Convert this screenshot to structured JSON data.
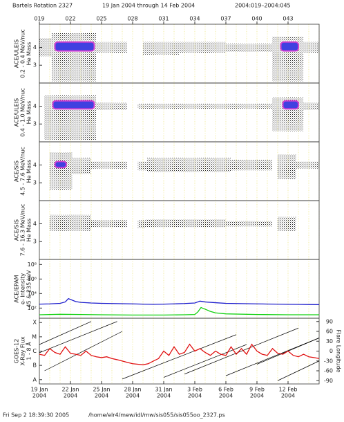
{
  "header": {
    "rotation": "Bartels Rotation 2327",
    "range": "19 Jan 2004 through 14 Feb 2004",
    "doy_range": "2004:019–2004:045"
  },
  "footer": {
    "timestamp": "Fri Sep  2 18:39:30 2005",
    "file": "/home/elr4/mew/idl/mw/sis055/sis055oo_2327.ps"
  },
  "chart_data": [
    {
      "type": "scatter",
      "ylabel": [
        "ACE/ULEIS",
        "0.2 - 0.4 MeV/nuc",
        "He Mass"
      ],
      "xlim": [
        19,
        46
      ],
      "ylim": [
        2,
        5.3
      ],
      "yticks": [
        3,
        4
      ],
      "x2ticks": [
        {
          "value": 19,
          "label": "019"
        },
        {
          "value": 22,
          "label": "022"
        },
        {
          "value": 25,
          "label": "025"
        },
        {
          "value": 28,
          "label": "028"
        },
        {
          "value": 31,
          "label": "031"
        },
        {
          "value": 34,
          "label": "034"
        },
        {
          "value": 37,
          "label": "037"
        },
        {
          "value": 40,
          "label": "040"
        },
        {
          "value": 43,
          "label": "043"
        }
      ],
      "minor_xticks": [
        19,
        20,
        21,
        22,
        23,
        24,
        25,
        26,
        27,
        28,
        29,
        30,
        31,
        32,
        33,
        34,
        35,
        36,
        37,
        38,
        39,
        40,
        41,
        42,
        43,
        44,
        45,
        46
      ],
      "grid_color": "#e8e060",
      "core_color": "#4040e0",
      "core_edge": "#d040d0",
      "clusters": [
        {
          "x": [
            19,
            20.2
          ],
          "y": [
            3.5,
            4.5
          ]
        },
        {
          "x": [
            20.2,
            24.5
          ],
          "y": [
            2.1,
            4.8
          ]
        },
        {
          "x": [
            24.5,
            27.5
          ],
          "y": [
            3.7,
            4.3
          ]
        },
        {
          "x": [
            29,
            32.5
          ],
          "y": [
            3.6,
            4.3
          ]
        },
        {
          "x": [
            32.5,
            37
          ],
          "y": [
            3.7,
            4.3
          ]
        },
        {
          "x": [
            37,
            41.5
          ],
          "y": [
            3.75,
            4.2
          ]
        },
        {
          "x": [
            41.5,
            44.5
          ],
          "y": [
            2.1,
            4.6
          ]
        },
        {
          "x": [
            44.5,
            46
          ],
          "y": [
            3.7,
            4.3
          ]
        }
      ],
      "cores": [
        {
          "x": [
            20.5,
            24.3
          ],
          "y": [
            3.8,
            4.3
          ]
        },
        {
          "x": [
            42.3,
            44
          ],
          "y": [
            3.8,
            4.3
          ]
        }
      ]
    },
    {
      "type": "scatter",
      "ylabel": [
        "ACE/ULEIS",
        "0.4 - 1.0 MeV/nuc",
        "He Mass"
      ],
      "xlim": [
        19,
        46
      ],
      "ylim": [
        2,
        5.3
      ],
      "yticks": [
        3,
        4
      ],
      "core_color": "#4040e0",
      "core_edge": "#d040d0",
      "clusters": [
        {
          "x": [
            19.5,
            24.5
          ],
          "y": [
            2.1,
            4.6
          ]
        },
        {
          "x": [
            24.5,
            27.5
          ],
          "y": [
            3.8,
            4.2
          ]
        },
        {
          "x": [
            28.5,
            41.5
          ],
          "y": [
            3.85,
            4.15
          ]
        },
        {
          "x": [
            41.5,
            44.5
          ],
          "y": [
            2.6,
            4.5
          ]
        },
        {
          "x": [
            44.5,
            46
          ],
          "y": [
            3.8,
            4.2
          ]
        }
      ],
      "cores": [
        {
          "x": [
            20.3,
            24.3
          ],
          "y": [
            3.85,
            4.3
          ]
        },
        {
          "x": [
            42.5,
            44
          ],
          "y": [
            3.85,
            4.3
          ]
        }
      ]
    },
    {
      "type": "scatter",
      "ylabel": [
        "ACE/SIS",
        "4.5 - 7.6 MeV/nuc",
        "He Mass"
      ],
      "xlim": [
        19,
        46
      ],
      "ylim": [
        2,
        5.3
      ],
      "yticks": [
        3,
        4
      ],
      "core_color": "#4040e0",
      "core_edge": "#d040d0",
      "clusters": [
        {
          "x": [
            20,
            22.2
          ],
          "y": [
            2.6,
            4.7
          ]
        },
        {
          "x": [
            22.2,
            24
          ],
          "y": [
            3.5,
            4.4
          ]
        },
        {
          "x": [
            24,
            27.5
          ],
          "y": [
            3.8,
            4.2
          ]
        },
        {
          "x": [
            28.5,
            29.4
          ],
          "y": [
            3.7,
            4.2
          ]
        },
        {
          "x": [
            29.4,
            37.5
          ],
          "y": [
            3.6,
            4.4
          ]
        },
        {
          "x": [
            37.5,
            41.5
          ],
          "y": [
            3.7,
            4.3
          ]
        },
        {
          "x": [
            42,
            43.8
          ],
          "y": [
            3.2,
            4.6
          ]
        },
        {
          "x": [
            43.8,
            46
          ],
          "y": [
            3.8,
            4.2
          ]
        }
      ],
      "cores": [
        {
          "x": [
            20.5,
            21.6
          ],
          "y": [
            3.85,
            4.2
          ]
        }
      ]
    },
    {
      "type": "scatter",
      "ylabel": [
        "ACE/SIS",
        "7.6 - 16.3 MeV/nuc",
        "He Mass"
      ],
      "xlim": [
        19,
        46
      ],
      "ylim": [
        2,
        5.3
      ],
      "yticks": [
        3,
        4
      ],
      "clusters": [
        {
          "x": [
            20,
            24
          ],
          "y": [
            3.6,
            4.5
          ]
        },
        {
          "x": [
            24,
            27.5
          ],
          "y": [
            3.8,
            4.2
          ]
        },
        {
          "x": [
            28.5,
            29.3
          ],
          "y": [
            3.75,
            4.2
          ]
        },
        {
          "x": [
            29.3,
            37
          ],
          "y": [
            3.8,
            4.25
          ]
        },
        {
          "x": [
            37,
            41.5
          ],
          "y": [
            3.85,
            4.15
          ]
        },
        {
          "x": [
            42,
            43.8
          ],
          "y": [
            3.6,
            4.4
          ]
        }
      ]
    },
    {
      "type": "line",
      "log": true,
      "ylabel": [
        "ACE/EPAM",
        "e- Intensity",
        "45 & 235 keV"
      ],
      "xlim": [
        19,
        46
      ],
      "ylim": [
        4,
        500000000
      ],
      "yticks": [
        {
          "value": 100,
          "label": "10²"
        },
        {
          "value": 10000,
          "label": "10⁴"
        },
        {
          "value": 1000000,
          "label": "10⁶"
        },
        {
          "value": 100000000,
          "label": "10⁸"
        }
      ],
      "series": [
        {
          "color": "#1c1ccc",
          "x": [
            19,
            20,
            21,
            21.5,
            21.8,
            22.5,
            23,
            24,
            25,
            26,
            27,
            28,
            29,
            30,
            31,
            32,
            33,
            34,
            34.5,
            35,
            36,
            37,
            38,
            39,
            40,
            41,
            42,
            43,
            44,
            45,
            46
          ],
          "values": [
            350,
            380,
            450,
            700,
            2000,
            800,
            600,
            500,
            450,
            420,
            400,
            380,
            350,
            330,
            350,
            380,
            420,
            500,
            900,
            700,
            550,
            450,
            420,
            400,
            380,
            360,
            350,
            330,
            320,
            310,
            300
          ]
        },
        {
          "color": "#10d010",
          "x": [
            19,
            21,
            23,
            25,
            28,
            31,
            33,
            34,
            34.3,
            34.6,
            35,
            35.5,
            36,
            37,
            40,
            43,
            46
          ],
          "values": [
            12,
            14,
            13,
            12,
            11,
            11,
            12,
            13,
            30,
            120,
            70,
            35,
            22,
            16,
            13,
            12,
            12
          ]
        }
      ]
    },
    {
      "type": "line",
      "log": true,
      "ylabel": [
        "GOES-12",
        "X-Ray Flux",
        "1 - 8 Å"
      ],
      "y2label": "Flare Longitude",
      "xlim": [
        19,
        46
      ],
      "ylim": [
        5e-09,
        0.0002
      ],
      "yticks": [
        {
          "value": 1e-08,
          "label": "A"
        },
        {
          "value": 1e-07,
          "label": "B"
        },
        {
          "value": 1e-06,
          "label": "C"
        },
        {
          "value": 1e-05,
          "label": "M"
        },
        {
          "value": 0.0001,
          "label": "X"
        }
      ],
      "y2lim": [
        -100,
        100
      ],
      "y2ticks": [
        -90,
        -60,
        -30,
        0,
        30,
        60,
        90
      ],
      "xticks": [
        {
          "value": 19,
          "label": "19 Jan"
        },
        {
          "value": 22,
          "label": "22 Jan"
        },
        {
          "value": 25,
          "label": "25 Jan"
        },
        {
          "value": 28,
          "label": "28 Jan"
        },
        {
          "value": 31,
          "label": "31 Jan"
        },
        {
          "value": 34,
          "label": "3 Feb"
        },
        {
          "value": 37,
          "label": "6 Feb"
        },
        {
          "value": 40,
          "label": "9 Feb"
        },
        {
          "value": 43,
          "label": "12 Feb"
        }
      ],
      "year_label": "2004",
      "series": [
        {
          "color": "#e01010",
          "x": [
            19,
            19.5,
            20,
            20.5,
            21,
            21.5,
            22,
            22.5,
            23,
            23.5,
            24,
            24.5,
            25,
            25.5,
            26,
            26.5,
            27,
            27.5,
            28,
            28.5,
            29,
            29.5,
            30,
            30.5,
            31,
            31.5,
            32,
            32.5,
            33,
            33.5,
            34,
            34.5,
            35,
            35.5,
            36,
            36.5,
            37,
            37.5,
            38,
            38.5,
            39,
            39.5,
            40,
            40.5,
            41,
            41.5,
            42,
            42.5,
            43,
            43.5,
            44,
            44.5,
            45,
            45.5,
            46
          ],
          "values": [
            6e-07,
            5e-07,
            1.5e-06,
            8e-07,
            6e-07,
            2e-06,
            7e-07,
            6e-07,
            5e-07,
            1e-06,
            5e-07,
            4e-07,
            3.5e-07,
            4e-07,
            3e-07,
            2.5e-07,
            2e-07,
            1.6e-07,
            1.3e-07,
            1.2e-07,
            1.1e-07,
            1.3e-07,
            2e-07,
            3e-07,
            1e-06,
            5e-07,
            2e-06,
            6e-07,
            8e-07,
            3e-06,
            1e-06,
            1.5e-06,
            8e-07,
            5e-07,
            1e-06,
            6e-07,
            5e-07,
            2e-06,
            6e-07,
            1.5e-06,
            6e-07,
            3e-06,
            1e-06,
            6e-07,
            5e-07,
            1.5e-06,
            7e-07,
            6e-07,
            1e-06,
            5e-07,
            4e-07,
            6e-07,
            4e-07,
            3.5e-07,
            3e-07
          ]
        }
      ],
      "tracks": [
        {
          "color": "#000000",
          "axis": "y2",
          "x": [
            19,
            26.5
          ],
          "values": [
            -5,
            90
          ]
        },
        {
          "color": "#000000",
          "axis": "y2",
          "x": [
            19,
            24
          ],
          "values": [
            20,
            90
          ]
        },
        {
          "color": "#000000",
          "axis": "y2",
          "x": [
            19.5,
            27
          ],
          "values": [
            -60,
            60
          ]
        },
        {
          "color": "#000000",
          "axis": "y2",
          "x": [
            27,
            38
          ],
          "values": [
            -85,
            50
          ]
        },
        {
          "color": "#000000",
          "axis": "y2",
          "x": [
            31,
            39
          ],
          "values": [
            -80,
            20
          ]
        },
        {
          "color": "#000000",
          "axis": "y2",
          "x": [
            33,
            44
          ],
          "values": [
            -70,
            70
          ]
        },
        {
          "color": "#000000",
          "axis": "y2",
          "x": [
            37,
            46
          ],
          "values": [
            -75,
            40
          ]
        },
        {
          "color": "#000000",
          "axis": "y2",
          "x": [
            40,
            46
          ],
          "values": [
            -40,
            40
          ]
        },
        {
          "color": "#000000",
          "axis": "y2",
          "x": [
            42,
            46
          ],
          "values": [
            -90,
            -30
          ]
        }
      ]
    }
  ]
}
